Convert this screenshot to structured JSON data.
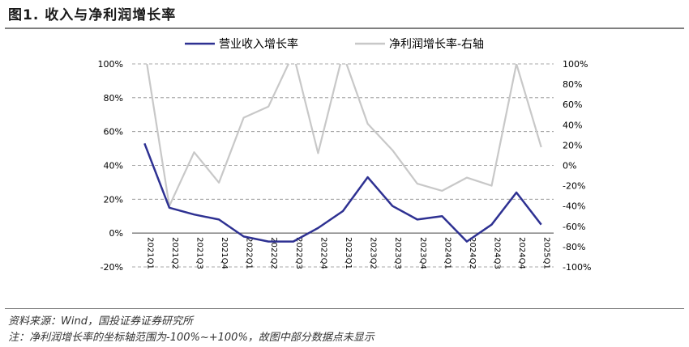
{
  "figure": {
    "title": "图1. 收入与净利润增长率",
    "source": "资料来源：Wind，国投证券证券研究所",
    "note": "注：净利润增长率的坐标轴范围为-100%~+100%，故图中部分数据点未显示"
  },
  "chart_data": {
    "type": "line",
    "categories": [
      "2021Q1",
      "2021Q2",
      "2021Q3",
      "2021Q4",
      "2022Q1",
      "2022Q2",
      "2022Q3",
      "2022Q4",
      "2023Q1",
      "2023Q2",
      "2023Q3",
      "2023Q4",
      "2024Q1",
      "2024Q2",
      "2024Q3",
      "2024Q4",
      "2025Q1"
    ],
    "series": [
      {
        "name": "营业收入增长率",
        "axis": "left",
        "color": "#2e3192",
        "values": [
          53,
          15,
          11,
          8,
          -2,
          -5,
          -5,
          3,
          13,
          33,
          16,
          8,
          10,
          -5,
          5,
          24,
          5
        ]
      },
      {
        "name": "净利润增长率-右轴",
        "axis": "right",
        "color": "#c8c8c8",
        "values": [
          115,
          -40,
          13,
          -17,
          47,
          58,
          110,
          12,
          110,
          41,
          15,
          -18,
          -25,
          -12,
          -20,
          100,
          18
        ]
      }
    ],
    "y_left": {
      "lim": [
        -20,
        100
      ],
      "ticks": [
        "-20%",
        "0%",
        "20%",
        "40%",
        "60%",
        "80%",
        "100%"
      ],
      "tick_values": [
        -20,
        0,
        20,
        40,
        60,
        80,
        100
      ]
    },
    "y_right": {
      "lim": [
        -100,
        100
      ],
      "ticks": [
        "-100%",
        "-80%",
        "-60%",
        "-40%",
        "-20%",
        "0%",
        "20%",
        "40%",
        "60%",
        "80%",
        "100%"
      ],
      "tick_values": [
        -100,
        -80,
        -60,
        -40,
        -20,
        0,
        20,
        40,
        60,
        80,
        100
      ]
    },
    "grid": "horizontal dashed",
    "legend_position": "top"
  }
}
